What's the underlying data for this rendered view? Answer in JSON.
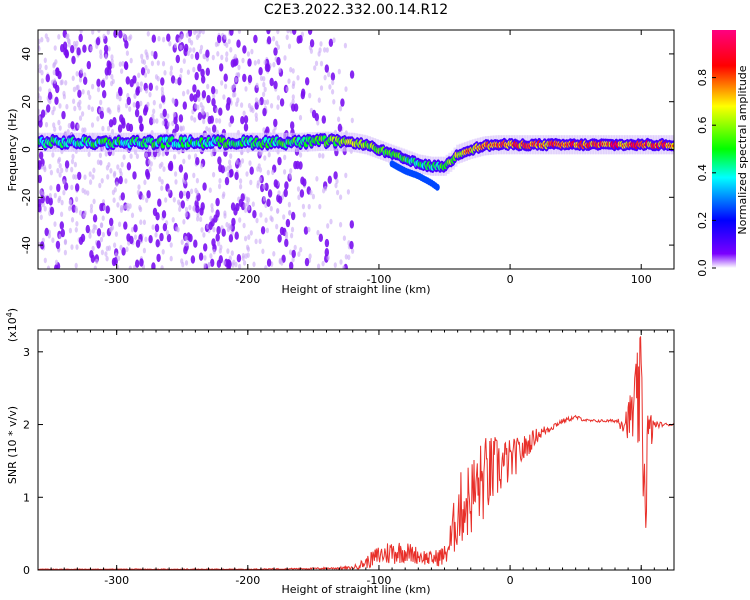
{
  "title": "C2E3.2022.332.00.14.R12",
  "chart_data": [
    {
      "type": "heatmap",
      "xlabel": "Height of straight line (km)",
      "ylabel": "Frequency (Hz)",
      "xlim": [
        -360,
        125
      ],
      "ylim": [
        -50,
        50
      ],
      "xticks": [
        -300,
        -200,
        -100,
        0,
        100
      ],
      "xtick_labels": [
        "-300",
        "-200",
        "-100",
        "0",
        "100"
      ],
      "yticks": [
        -40,
        -20,
        0,
        20,
        40
      ],
      "ytick_labels": [
        "-40",
        "-20",
        "0",
        "20",
        "40"
      ],
      "colorbar": {
        "label": "Normalized spectral amplitude",
        "range": [
          0,
          1
        ],
        "ticks": [
          0.0,
          0.2,
          0.4,
          0.6,
          0.8
        ],
        "tick_labels": [
          "0.0",
          "0.2",
          "0.4",
          "0.6",
          "0.8"
        ],
        "colormap": [
          "#ffffff",
          "#7a00ff",
          "#0000ff",
          "#00ffff",
          "#00ff00",
          "#ffff00",
          "#ff0000",
          "#ff0080"
        ]
      },
      "noise_region_x": [
        -360,
        -135
      ],
      "carrier_track": {
        "x": [
          -360,
          -300,
          -250,
          -200,
          -160,
          -140,
          -120,
          -110,
          -100,
          -90,
          -80,
          -70,
          -60,
          -50,
          -45,
          -40,
          -30,
          -20,
          -10,
          0,
          20,
          50,
          80,
          100,
          125
        ],
        "frequency": [
          3,
          3,
          3,
          3,
          3,
          3.5,
          3,
          2,
          0,
          -2,
          -4,
          -6,
          -7,
          -7,
          -5,
          -2,
          0,
          1.5,
          2,
          2,
          2,
          2,
          2,
          2,
          2
        ],
        "amplitude": [
          0.45,
          0.5,
          0.5,
          0.5,
          0.55,
          0.6,
          0.65,
          0.65,
          0.6,
          0.6,
          0.55,
          0.5,
          0.5,
          0.55,
          0.6,
          0.7,
          0.75,
          0.8,
          0.8,
          0.8,
          0.82,
          0.85,
          0.85,
          0.85,
          0.85
        ]
      },
      "secondary_track": {
        "x": [
          -90,
          -80,
          -70,
          -60,
          -55
        ],
        "frequency": [
          -6,
          -9,
          -11,
          -14,
          -16
        ]
      }
    },
    {
      "type": "line",
      "xlabel": "Height of straight line (km)",
      "ylabel": "SNR (10 * v/v)",
      "y_multiplier_label": "(x10",
      "y_multiplier_exp": "4",
      "y_multiplier_close": ")",
      "xlim": [
        -360,
        125
      ],
      "ylim": [
        0,
        3.3
      ],
      "xticks": [
        -300,
        -200,
        -100,
        0,
        100
      ],
      "xtick_labels": [
        "-300",
        "-200",
        "-100",
        "0",
        "100"
      ],
      "yticks": [
        0,
        1,
        2,
        3
      ],
      "ytick_labels": [
        "0",
        "1",
        "2",
        "3"
      ],
      "color": "#e8302a",
      "series": [
        {
          "x": [
            -360,
            -300,
            -200,
            -150,
            -120,
            -110,
            -100,
            -90,
            -80,
            -70,
            -60,
            -50,
            -45,
            -40,
            -30,
            -20,
            -10,
            0,
            10,
            20,
            30,
            40,
            50,
            60,
            70,
            80,
            90,
            95,
            100,
            103,
            105,
            110,
            120,
            125
          ],
          "y": [
            0.01,
            0.01,
            0.01,
            0.02,
            0.03,
            0.1,
            0.2,
            0.25,
            0.25,
            0.2,
            0.15,
            0.2,
            0.4,
            0.8,
            1.0,
            1.25,
            1.4,
            1.5,
            1.65,
            1.85,
            1.95,
            2.05,
            2.1,
            2.05,
            2.05,
            2.05,
            2.05,
            2.2,
            2.4,
            1.0,
            1.8,
            2.0,
            2.0,
            2.0
          ],
          "noise_amplitude": [
            0.005,
            0.005,
            0.005,
            0.01,
            0.02,
            0.08,
            0.15,
            0.18,
            0.15,
            0.12,
            0.1,
            0.15,
            0.3,
            0.5,
            0.55,
            0.6,
            0.45,
            0.3,
            0.2,
            0.1,
            0.06,
            0.03,
            0.03,
            0.02,
            0.02,
            0.02,
            0.25,
            0.6,
            0.9,
            0.9,
            0.5,
            0.05,
            0.02,
            0.02
          ]
        }
      ]
    }
  ]
}
